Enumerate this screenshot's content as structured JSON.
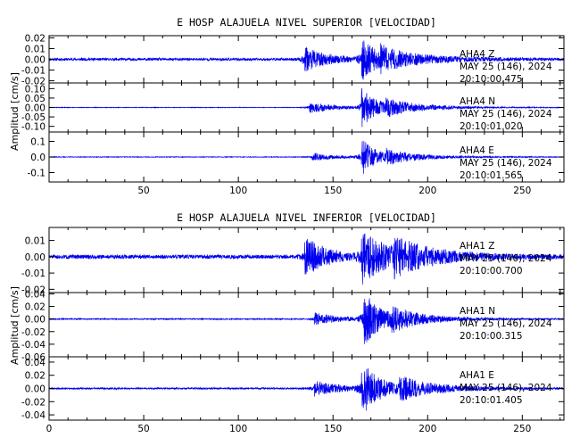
{
  "chart_data": [
    {
      "type": "line",
      "title": "E HOSP ALAJUELA NIVEL SUPERIOR [VELOCIDAD]",
      "ylabel": "Amplitud [cm/s]",
      "xlim": [
        0,
        272
      ],
      "xticks": [
        "50",
        "100",
        "150",
        "200",
        "250"
      ],
      "xtick_values": [
        50,
        100,
        150,
        200,
        250
      ],
      "series": [
        {
          "station": "AHA4",
          "component": "Z",
          "date": "MAY 25 (146), 2024",
          "time": "20:10:00.475",
          "ylim": [
            -0.022,
            0.022
          ],
          "yticks": [
            "0.02",
            "0.01",
            "0.00",
            "-0.01",
            "-0.02"
          ],
          "ytick_values": [
            0.02,
            0.01,
            0.0,
            -0.01,
            -0.02
          ],
          "noise": 0.0012,
          "events": [
            [
              134,
              0.012,
              12
            ],
            [
              165,
              0.02,
              8
            ],
            [
              175,
              0.008,
              25
            ]
          ],
          "seed": 11
        },
        {
          "station": "AHA4",
          "component": "N",
          "date": "MAY 25 (146), 2024",
          "time": "20:10:01.020",
          "ylim": [
            -0.13,
            0.13
          ],
          "yticks": [
            "0.10",
            "0.05",
            "0.00",
            "-0.05",
            "-0.10"
          ],
          "ytick_values": [
            0.1,
            0.05,
            0.0,
            -0.05,
            -0.1
          ],
          "noise": 0.0015,
          "events": [
            [
              137,
              0.03,
              14
            ],
            [
              165,
              0.105,
              8
            ],
            [
              178,
              0.035,
              22
            ]
          ],
          "seed": 23
        },
        {
          "station": "AHA4",
          "component": "E",
          "date": "MAY 25 (146), 2024",
          "time": "20:10:01.565",
          "ylim": [
            -0.16,
            0.16
          ],
          "yticks": [
            "0.1",
            "0.0",
            "-0.1"
          ],
          "ytick_values": [
            0.1,
            0.0,
            -0.1
          ],
          "noise": 0.002,
          "events": [
            [
              139,
              0.025,
              14
            ],
            [
              165,
              0.13,
              7
            ],
            [
              178,
              0.04,
              20
            ]
          ],
          "seed": 37
        }
      ]
    },
    {
      "type": "line",
      "title": "E HOSP ALAJUELA NIVEL INFERIOR [VELOCIDAD]",
      "ylabel": "Amplitud [cm/s]",
      "xlim": [
        0,
        272
      ],
      "xticks": [
        "0",
        "50",
        "100",
        "150",
        "200",
        "250"
      ],
      "xtick_values": [
        0,
        50,
        100,
        150,
        200,
        250
      ],
      "series": [
        {
          "station": "AHA1",
          "component": "Z",
          "date": "MAY 25 (146), 2024",
          "time": "20:10:00.700",
          "ylim": [
            -0.022,
            0.018
          ],
          "yticks": [
            "0.01",
            "0.00",
            "-0.01",
            "-0.02"
          ],
          "ytick_values": [
            0.01,
            0.0,
            -0.01,
            -0.02
          ],
          "noise": 0.0012,
          "events": [
            [
              135,
              0.012,
              12
            ],
            [
              165,
              0.016,
              14
            ],
            [
              182,
              0.008,
              25
            ]
          ],
          "seed": 51
        },
        {
          "station": "AHA1",
          "component": "N",
          "date": "MAY 25 (146), 2024",
          "time": "20:10:00.315",
          "ylim": [
            -0.06,
            0.042
          ],
          "yticks": [
            "0.04",
            "0.02",
            "0.00",
            "-0.02",
            "-0.04",
            "-0.06"
          ],
          "ytick_values": [
            0.04,
            0.02,
            0.0,
            -0.02,
            -0.04,
            -0.06
          ],
          "noise": 0.0008,
          "events": [
            [
              140,
              0.01,
              14
            ],
            [
              166,
              0.045,
              9
            ],
            [
              180,
              0.015,
              20
            ]
          ],
          "seed": 67
        },
        {
          "station": "AHA1",
          "component": "E",
          "date": "MAY 25 (146), 2024",
          "time": "20:10:01.405",
          "ylim": [
            -0.048,
            0.048
          ],
          "yticks": [
            "0.04",
            "0.02",
            "0.00",
            "-0.02",
            "-0.04"
          ],
          "ytick_values": [
            0.04,
            0.02,
            0.0,
            -0.02,
            -0.04
          ],
          "noise": 0.0012,
          "events": [
            [
              140,
              0.012,
              14
            ],
            [
              165,
              0.04,
              10
            ],
            [
              185,
              0.014,
              22
            ]
          ],
          "seed": 79
        }
      ]
    }
  ]
}
